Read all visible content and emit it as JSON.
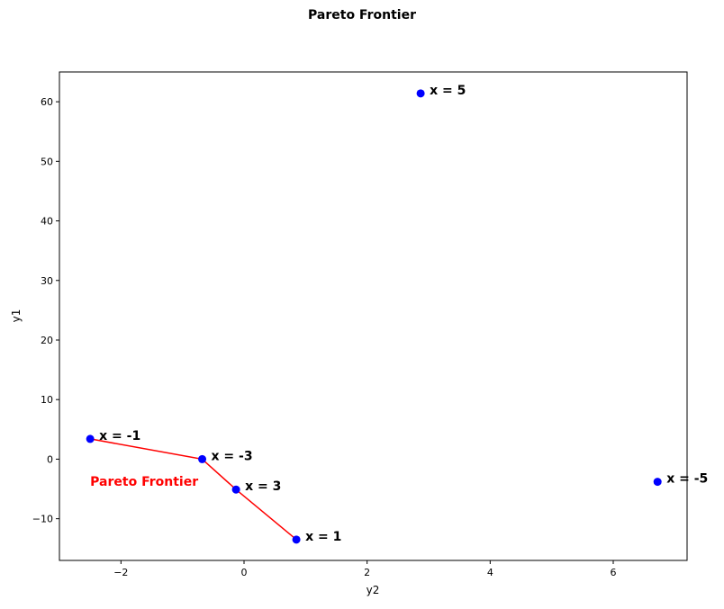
{
  "chart_data": {
    "type": "scatter",
    "title": "Pareto Frontier",
    "xlabel": "y2",
    "ylabel": "y1",
    "xlim": [
      -3,
      7.2
    ],
    "ylim": [
      -17,
      65
    ],
    "xticks": [
      -2,
      0,
      2,
      4,
      6
    ],
    "yticks": [
      -10,
      0,
      10,
      20,
      30,
      40,
      50,
      60
    ],
    "xtick_labels": [
      "−2",
      "0",
      "2",
      "4",
      "6"
    ],
    "ytick_labels": [
      "−10",
      "0",
      "10",
      "20",
      "30",
      "40",
      "50",
      "60"
    ],
    "grid": false,
    "point_color": "#0000ff",
    "line_color": "#ff0000",
    "points": [
      {
        "label": "x = 5",
        "x": 2.87,
        "y": 61.4
      },
      {
        "label": "x = -1",
        "x": -2.5,
        "y": 3.4
      },
      {
        "label": "x = -3",
        "x": -0.68,
        "y": 0.0
      },
      {
        "label": "x = 3",
        "x": -0.13,
        "y": -5.1
      },
      {
        "label": "x = 1",
        "x": 0.85,
        "y": -13.5
      },
      {
        "label": "x = -5",
        "x": 6.72,
        "y": -3.8
      }
    ],
    "frontier": [
      {
        "x": -2.5,
        "y": 3.4
      },
      {
        "x": -0.68,
        "y": 0.0
      },
      {
        "x": -0.13,
        "y": -5.1
      },
      {
        "x": 0.85,
        "y": -13.5
      }
    ],
    "annotation": {
      "text": "Pareto Frontier",
      "x": -2.5,
      "y": -4.5,
      "color": "#ff0000"
    }
  }
}
